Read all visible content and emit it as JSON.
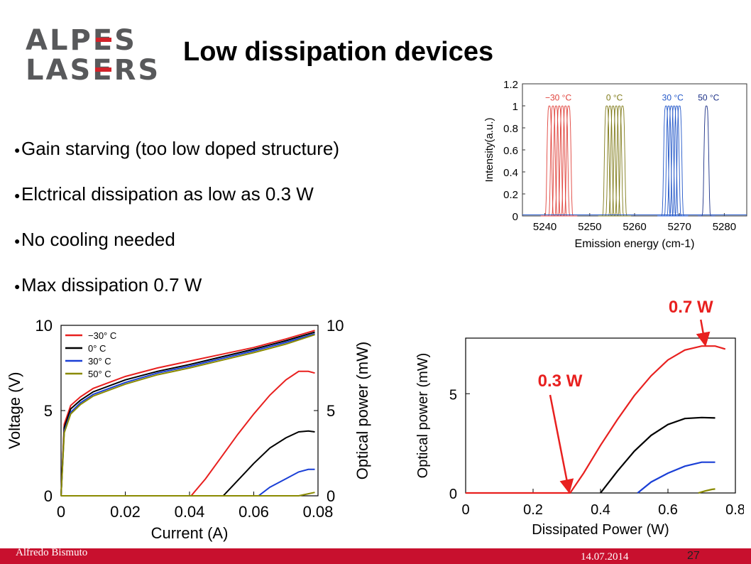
{
  "logo": {
    "line1_a": "ALP",
    "line1_e": "E",
    "line1_b": "S",
    "line2_a": "LAS",
    "line2_e": "E",
    "line2_b": "RS"
  },
  "title": "Low dissipation devices",
  "bullets": [
    "Gain starving (too low doped structure)",
    "Elctrical dissipation as low as 0.3 W",
    "No cooling needed",
    "Max dissipation 0.7 W"
  ],
  "footer": {
    "author": "Alfredo Bismuto",
    "date": "14.07.2014",
    "page": "27"
  },
  "colors": {
    "red": "#e8201f",
    "black": "#000000",
    "blue": "#1a3fd6",
    "olive": "#8a8a00",
    "spec_red": "#e0413a",
    "spec_olive": "#7f7a18",
    "spec_blue": "#2156c8",
    "spec_navy": "#1a2f86",
    "footer": "#c8102e",
    "annotation": "#e8201f"
  },
  "chart_data": [
    {
      "type": "line",
      "title": "",
      "xlabel": "Emission energy (cm-1)",
      "ylabel": "Intensity(a.u.)",
      "xlim": [
        5235,
        5285
      ],
      "ylim": [
        0,
        1.2
      ],
      "xticks": [
        "5240",
        "5250",
        "5260",
        "5270",
        "5280"
      ],
      "yticks": [
        "0",
        "0.2",
        "0.4",
        "0.6",
        "0.8",
        "1",
        "1.2"
      ],
      "series": [
        {
          "name": "−30 °C",
          "color": "spec_red",
          "peaks": [
            5241.0,
            5241.8,
            5242.5,
            5243.2,
            5243.9,
            5244.6,
            5245.3
          ],
          "peak_height": 1.0
        },
        {
          "name": "0 °C",
          "color": "spec_olive",
          "peaks": [
            5253.8,
            5254.5,
            5255.2,
            5255.9,
            5256.6,
            5257.3
          ],
          "peak_height": 1.0
        },
        {
          "name": "30 °C",
          "color": "spec_blue",
          "peaks": [
            5267.0,
            5267.6,
            5268.2,
            5268.8,
            5269.4,
            5270.0
          ],
          "peak_height": 1.0
        },
        {
          "name": "50 °C",
          "color": "spec_navy",
          "peaks": [
            5276.0
          ],
          "peak_height": 1.0
        }
      ]
    },
    {
      "type": "line",
      "title": "",
      "xlabel": "Current (A)",
      "ylabel": "Voltage (V)",
      "y2label": "Optical power (mW)",
      "xlim": [
        0,
        0.08
      ],
      "ylim": [
        0,
        10
      ],
      "y2lim": [
        0,
        10
      ],
      "xticks": [
        "0",
        "0.02",
        "0.04",
        "0.06",
        "0.08"
      ],
      "yticks": [
        "0",
        "5",
        "10"
      ],
      "y2ticks": [
        "0",
        "5",
        "10"
      ],
      "legend": "top-left",
      "series": [
        {
          "name": "−30° C",
          "color": "red",
          "voltage": [
            [
              0,
              0
            ],
            [
              0.001,
              4.2
            ],
            [
              0.003,
              5.3
            ],
            [
              0.006,
              5.8
            ],
            [
              0.01,
              6.3
            ],
            [
              0.02,
              7.0
            ],
            [
              0.03,
              7.5
            ],
            [
              0.04,
              7.9
            ],
            [
              0.05,
              8.3
            ],
            [
              0.06,
              8.7
            ],
            [
              0.07,
              9.2
            ],
            [
              0.079,
              9.7
            ]
          ],
          "power": [
            [
              0,
              0
            ],
            [
              0.0405,
              0
            ],
            [
              0.045,
              1.0
            ],
            [
              0.05,
              2.3
            ],
            [
              0.055,
              3.6
            ],
            [
              0.06,
              4.8
            ],
            [
              0.065,
              5.9
            ],
            [
              0.07,
              6.8
            ],
            [
              0.074,
              7.3
            ],
            [
              0.077,
              7.3
            ],
            [
              0.079,
              7.2
            ]
          ]
        },
        {
          "name": "0° C",
          "color": "black",
          "voltage": [
            [
              0,
              0
            ],
            [
              0.001,
              4.0
            ],
            [
              0.003,
              5.1
            ],
            [
              0.006,
              5.6
            ],
            [
              0.01,
              6.1
            ],
            [
              0.02,
              6.8
            ],
            [
              0.03,
              7.3
            ],
            [
              0.04,
              7.7
            ],
            [
              0.05,
              8.15
            ],
            [
              0.06,
              8.6
            ],
            [
              0.07,
              9.1
            ],
            [
              0.079,
              9.6
            ]
          ],
          "power": [
            [
              0,
              0
            ],
            [
              0.0505,
              0
            ],
            [
              0.055,
              0.9
            ],
            [
              0.06,
              1.9
            ],
            [
              0.065,
              2.8
            ],
            [
              0.07,
              3.4
            ],
            [
              0.074,
              3.75
            ],
            [
              0.077,
              3.8
            ],
            [
              0.079,
              3.75
            ]
          ]
        },
        {
          "name": "30° C",
          "color": "blue",
          "voltage": [
            [
              0,
              0
            ],
            [
              0.001,
              3.8
            ],
            [
              0.003,
              4.9
            ],
            [
              0.006,
              5.45
            ],
            [
              0.01,
              5.95
            ],
            [
              0.02,
              6.65
            ],
            [
              0.03,
              7.2
            ],
            [
              0.04,
              7.6
            ],
            [
              0.05,
              8.05
            ],
            [
              0.06,
              8.5
            ],
            [
              0.07,
              9.0
            ],
            [
              0.079,
              9.5
            ]
          ],
          "power": [
            [
              0,
              0
            ],
            [
              0.0615,
              0
            ],
            [
              0.065,
              0.5
            ],
            [
              0.07,
              1.0
            ],
            [
              0.074,
              1.4
            ],
            [
              0.077,
              1.55
            ],
            [
              0.079,
              1.55
            ]
          ]
        },
        {
          "name": "50° C",
          "color": "olive",
          "voltage": [
            [
              0,
              0
            ],
            [
              0.001,
              3.7
            ],
            [
              0.003,
              4.8
            ],
            [
              0.006,
              5.35
            ],
            [
              0.01,
              5.85
            ],
            [
              0.02,
              6.55
            ],
            [
              0.03,
              7.1
            ],
            [
              0.04,
              7.5
            ],
            [
              0.05,
              7.95
            ],
            [
              0.06,
              8.4
            ],
            [
              0.07,
              8.9
            ],
            [
              0.079,
              9.45
            ]
          ],
          "power": [
            [
              0,
              0
            ],
            [
              0.074,
              0
            ],
            [
              0.077,
              0.12
            ],
            [
              0.079,
              0.2
            ]
          ]
        }
      ]
    },
    {
      "type": "line",
      "title": "",
      "xlabel": "Dissipated Power (W)",
      "ylabel": "Optical power (mW)",
      "xlim": [
        0,
        0.8
      ],
      "ylim": [
        0,
        7.8
      ],
      "xticks": [
        "0",
        "0.2",
        "0.4",
        "0.6",
        "0.8"
      ],
      "yticks": [
        "0",
        "5"
      ],
      "series": [
        {
          "color": "red",
          "points": [
            [
              0,
              0
            ],
            [
              0.31,
              0
            ],
            [
              0.35,
              1.0
            ],
            [
              0.4,
              2.4
            ],
            [
              0.45,
              3.7
            ],
            [
              0.5,
              4.9
            ],
            [
              0.55,
              5.9
            ],
            [
              0.6,
              6.7
            ],
            [
              0.65,
              7.2
            ],
            [
              0.7,
              7.4
            ],
            [
              0.74,
              7.4
            ],
            [
              0.77,
              7.25
            ]
          ]
        },
        {
          "color": "black",
          "points": [
            [
              0.4,
              0
            ],
            [
              0.45,
              1.1
            ],
            [
              0.5,
              2.1
            ],
            [
              0.55,
              2.9
            ],
            [
              0.6,
              3.45
            ],
            [
              0.65,
              3.75
            ],
            [
              0.7,
              3.8
            ],
            [
              0.74,
              3.78
            ]
          ]
        },
        {
          "color": "blue",
          "points": [
            [
              0.51,
              0
            ],
            [
              0.55,
              0.55
            ],
            [
              0.6,
              1.0
            ],
            [
              0.65,
              1.35
            ],
            [
              0.7,
              1.55
            ],
            [
              0.74,
              1.55
            ]
          ]
        },
        {
          "color": "olive",
          "points": [
            [
              0.69,
              0
            ],
            [
              0.71,
              0.1
            ],
            [
              0.73,
              0.18
            ],
            [
              0.74,
              0.2
            ]
          ]
        }
      ],
      "annotations": [
        {
          "text": "0.3 W",
          "x": 0.31,
          "y": 0
        },
        {
          "text": "0.7 W",
          "x": 0.71,
          "y": 7.4
        }
      ]
    }
  ]
}
